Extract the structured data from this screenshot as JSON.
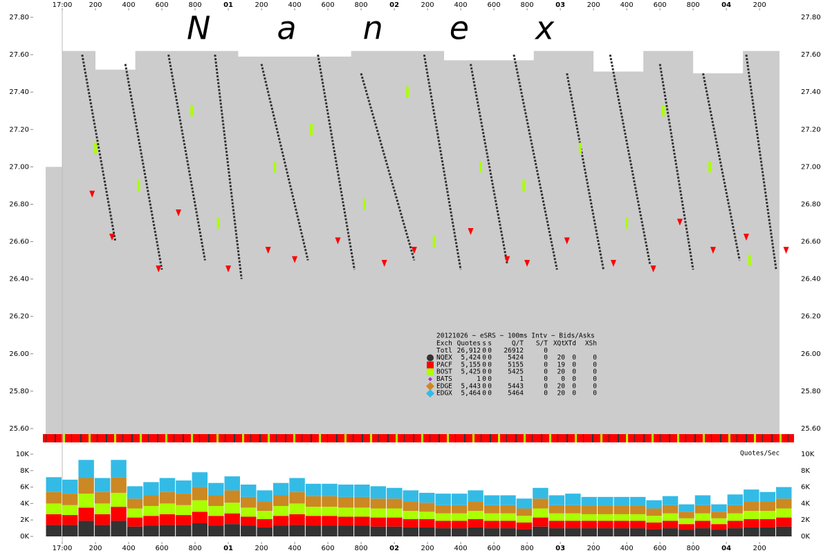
{
  "watermark": "Nanex",
  "chart_data": [
    {
      "type": "price",
      "xlim": [
        -0.5,
        22.08
      ],
      "xticks": [
        {
          "value": 0,
          "label": "17:00"
        },
        {
          "value": 1,
          "label": "200"
        },
        {
          "value": 2,
          "label": "400"
        },
        {
          "value": 3,
          "label": "600"
        },
        {
          "value": 4,
          "label": "800"
        },
        {
          "value": 5,
          "label": "01"
        },
        {
          "value": 6,
          "label": "200"
        },
        {
          "value": 7,
          "label": "400"
        },
        {
          "value": 8,
          "label": "600"
        },
        {
          "value": 9,
          "label": "800"
        },
        {
          "value": 10,
          "label": "02"
        },
        {
          "value": 11,
          "label": "200"
        },
        {
          "value": 12,
          "label": "400"
        },
        {
          "value": 13,
          "label": "600"
        },
        {
          "value": 14,
          "label": "800"
        },
        {
          "value": 15,
          "label": "03"
        },
        {
          "value": 16,
          "label": "200"
        },
        {
          "value": 17,
          "label": "400"
        },
        {
          "value": 18,
          "label": "600"
        },
        {
          "value": 19,
          "label": "800"
        },
        {
          "value": 20,
          "label": "04"
        },
        {
          "value": 21,
          "label": "200"
        }
      ],
      "ylim": [
        25.55,
        27.85
      ],
      "yticks": [
        {
          "value": 25.6,
          "label": "25.60"
        },
        {
          "value": 25.8,
          "label": "25.80"
        },
        {
          "value": 26.0,
          "label": "26.00"
        },
        {
          "value": 26.2,
          "label": "26.20"
        },
        {
          "value": 26.4,
          "label": "26.40"
        },
        {
          "value": 26.6,
          "label": "26.60"
        },
        {
          "value": 26.8,
          "label": "26.80"
        },
        {
          "value": 27.0,
          "label": "27.00"
        },
        {
          "value": 27.2,
          "label": "27.20"
        },
        {
          "value": 27.4,
          "label": "27.40"
        },
        {
          "value": 27.6,
          "label": "27.60"
        },
        {
          "value": 27.8,
          "label": "27.80"
        }
      ],
      "series": [
        {
          "type": "area",
          "color": "#cccccc",
          "x": [
            -0.5,
            0,
            0,
            1,
            1,
            2.2,
            2.2,
            5.3,
            5.3,
            8.7,
            8.7,
            11.5,
            11.5,
            14.2,
            14.2,
            16,
            16,
            17.5,
            17.5,
            19,
            19,
            20.5,
            20.5,
            21.6,
            21.6
          ],
          "values": [
            27.0,
            27.0,
            27.62,
            27.62,
            27.52,
            27.52,
            27.62,
            27.62,
            27.59,
            27.59,
            27.62,
            27.62,
            27.57,
            27.57,
            27.62,
            27.62,
            27.51,
            27.51,
            27.62,
            27.62,
            27.5,
            27.5,
            27.62,
            27.62,
            26.4
          ]
        },
        {
          "type": "line",
          "color": "#333333",
          "x": [
            0.6,
            1.6,
            null,
            1.9,
            3.0,
            null,
            3.2,
            4.3,
            null,
            4.6,
            5.4,
            null,
            6.0,
            7.4,
            null,
            7.7,
            8.8,
            null,
            9.0,
            10.6,
            null,
            10.9,
            12.0,
            null,
            12.3,
            13.4,
            null,
            13.6,
            14.9,
            null,
            15.2,
            16.3,
            null,
            16.5,
            17.7,
            null,
            18.0,
            19.0,
            null,
            19.3,
            20.4,
            null,
            20.6,
            21.5
          ],
          "values": [
            27.6,
            26.6,
            null,
            27.55,
            26.45,
            null,
            27.6,
            26.5,
            null,
            27.6,
            26.4,
            null,
            27.55,
            26.5,
            null,
            27.6,
            26.45,
            null,
            27.5,
            26.5,
            null,
            27.6,
            26.45,
            null,
            27.55,
            26.48,
            null,
            27.6,
            26.45,
            null,
            27.5,
            26.45,
            null,
            27.6,
            26.48,
            null,
            27.55,
            26.45,
            null,
            27.5,
            26.5,
            null,
            27.6,
            26.45
          ]
        },
        {
          "type": "scatter",
          "marker": "triangle",
          "color": "#ff0000",
          "x": [
            0.9,
            1.5,
            2.9,
            3.5,
            5.0,
            6.2,
            7.0,
            8.3,
            9.7,
            10.6,
            12.3,
            13.4,
            14.0,
            15.2,
            16.6,
            17.8,
            18.6,
            19.6,
            20.6,
            21.8
          ],
          "values": [
            26.85,
            26.62,
            26.45,
            26.75,
            26.45,
            26.55,
            26.5,
            26.6,
            26.48,
            26.55,
            26.65,
            26.5,
            26.48,
            26.6,
            26.48,
            26.45,
            26.7,
            26.55,
            26.62,
            26.55
          ]
        },
        {
          "type": "scatter",
          "marker": "dash",
          "color": "#aaff00",
          "x": [
            1.0,
            2.3,
            3.9,
            4.7,
            6.4,
            7.5,
            9.1,
            10.4,
            11.2,
            12.6,
            13.9,
            15.6,
            17.0,
            18.1,
            19.5,
            20.7
          ],
          "values": [
            27.1,
            26.9,
            27.3,
            26.7,
            27.0,
            27.2,
            26.8,
            27.4,
            26.6,
            27.0,
            26.9,
            27.1,
            26.7,
            27.3,
            27.0,
            26.5
          ]
        }
      ]
    },
    {
      "type": "stacked_bar",
      "label": "Quotes/Sec",
      "categories": [
        null,
        null,
        null,
        null,
        null,
        null,
        null,
        null,
        null,
        null,
        null,
        null,
        null,
        null,
        null,
        null,
        null,
        null,
        null,
        null,
        null,
        null,
        null,
        null,
        null,
        null,
        null,
        null,
        null,
        null,
        null,
        null,
        null,
        null,
        null,
        null,
        null,
        null,
        null,
        null,
        null,
        null,
        null,
        null,
        null,
        null
      ],
      "ylim": [
        0,
        10000
      ],
      "yticks": [
        {
          "value": 0,
          "label": "0K"
        },
        {
          "value": 2000,
          "label": "2K"
        },
        {
          "value": 4000,
          "label": "4K"
        },
        {
          "value": 6000,
          "label": "6K"
        },
        {
          "value": 8000,
          "label": "8K"
        },
        {
          "value": 10000,
          "label": "10K"
        }
      ],
      "series": [
        {
          "color": "#333333",
          "values": [
            1400,
            1400,
            1900,
            1400,
            1900,
            1200,
            1300,
            1400,
            1400,
            1600,
            1300,
            1500,
            1300,
            1100,
            1300,
            1400,
            1300,
            1300,
            1300,
            1300,
            1200,
            1200,
            1100,
            1100,
            1000,
            1000,
            1100,
            1000,
            1000,
            900,
            1200,
            1000,
            1000,
            1000,
            1000,
            1000,
            1000,
            900,
            1000,
            800,
            1000,
            800,
            1000,
            1100,
            1100,
            1200
          ]
        },
        {
          "color": "#ff0000",
          "values": [
            1300,
            1200,
            1600,
            1300,
            1700,
            1100,
            1200,
            1300,
            1200,
            1400,
            1200,
            1300,
            1100,
            1000,
            1200,
            1300,
            1200,
            1200,
            1100,
            1100,
            1100,
            1100,
            1000,
            1000,
            900,
            900,
            1000,
            900,
            900,
            800,
            1100,
            900,
            900,
            900,
            900,
            900,
            900,
            800,
            900,
            700,
            900,
            700,
            900,
            1000,
            1000,
            1100
          ]
        },
        {
          "color": "#aaff00",
          "values": [
            1300,
            1200,
            1700,
            1300,
            1700,
            1100,
            1200,
            1300,
            1200,
            1400,
            1200,
            1300,
            1100,
            1000,
            1200,
            1300,
            1100,
            1100,
            1100,
            1100,
            1100,
            1100,
            1000,
            900,
            900,
            900,
            1000,
            900,
            900,
            800,
            1100,
            900,
            900,
            800,
            800,
            800,
            800,
            800,
            900,
            700,
            900,
            700,
            900,
            1000,
            1000,
            1100
          ]
        },
        {
          "color": "#cc8822",
          "values": [
            1400,
            1400,
            1900,
            1400,
            1900,
            1200,
            1300,
            1400,
            1400,
            1600,
            1300,
            1500,
            1300,
            1100,
            1300,
            1400,
            1300,
            1300,
            1300,
            1300,
            1200,
            1200,
            1100,
            1100,
            1000,
            1000,
            1100,
            1000,
            1000,
            900,
            1200,
            1000,
            1000,
            1000,
            1000,
            1000,
            1000,
            900,
            1000,
            800,
            1000,
            800,
            1000,
            1100,
            1100,
            1200
          ]
        },
        {
          "color": "#33bbe6",
          "values": [
            1800,
            1700,
            2200,
            1700,
            2100,
            1500,
            1600,
            1700,
            1600,
            1800,
            1500,
            1700,
            1500,
            1400,
            1500,
            1700,
            1500,
            1500,
            1500,
            1500,
            1500,
            1300,
            1400,
            1200,
            1400,
            1400,
            1400,
            1200,
            1200,
            1200,
            1300,
            1200,
            1400,
            1100,
            1100,
            1100,
            1100,
            1000,
            1100,
            900,
            1200,
            900,
            1300,
            1500,
            1200,
            1400
          ]
        }
      ]
    }
  ],
  "stats": {
    "title": "20121026 ~ eSRS ~ 100ms Intv ~ Bids/Asks",
    "columns": [
      "Exch",
      "Quotes",
      "s",
      "s",
      "Q/T",
      "S/T",
      "XQt",
      "XTd",
      "XSh"
    ],
    "rows": [
      {
        "cells": [
          "Totl",
          "26,912",
          "0",
          "0",
          "26912",
          "0"
        ]
      },
      {
        "marker": "circle",
        "color": "#333333",
        "cells": [
          "NQEX",
          "5,424",
          "0",
          "0",
          "5424",
          "0",
          "20",
          "0",
          "0"
        ]
      },
      {
        "marker": "square",
        "color": "#ff0000",
        "cells": [
          "PACF",
          "5,155",
          "0",
          "0",
          "5155",
          "0",
          "19",
          "0",
          "0"
        ]
      },
      {
        "marker": "square",
        "color": "#aaff00",
        "cells": [
          "BOST",
          "5,425",
          "0",
          "0",
          "5425",
          "0",
          "20",
          "0",
          "0"
        ]
      },
      {
        "marker": "small-diamond",
        "color": "#9933cc",
        "cells": [
          "BATS",
          "1",
          "0",
          "0",
          "1",
          "0",
          "0",
          "0",
          "0"
        ]
      },
      {
        "marker": "diamond",
        "color": "#cc8822",
        "cells": [
          "EDGE",
          "5,443",
          "0",
          "0",
          "5443",
          "0",
          "20",
          "0",
          "0"
        ]
      },
      {
        "marker": "diamond",
        "color": "#33bbe6",
        "cells": [
          "EDGX",
          "5,464",
          "0",
          "0",
          "5464",
          "0",
          "20",
          "0",
          "0"
        ]
      }
    ]
  }
}
